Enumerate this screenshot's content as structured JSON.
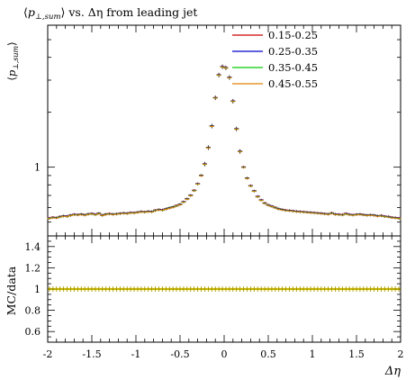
{
  "chart_data": {
    "type": "scatter",
    "title_parts": {
      "bracket_open": "⟨",
      "p": "p",
      "p_sub": "⊥,sum",
      "bracket_close": "⟩",
      "rest": " vs. Δη from leading jet"
    },
    "ylabel_main": {
      "bracket_open": "⟨",
      "p": "p",
      "p_sub": "⊥,sum",
      "bracket_close": "⟩"
    },
    "ylabel_ratio": "MC/data",
    "xlabel": "Δη",
    "xlim": [
      -2,
      2
    ],
    "main_ylim": [
      0.42,
      6.0
    ],
    "main_yscale": "log",
    "main_yticks": [
      {
        "value": 1,
        "label": "1"
      }
    ],
    "ratio_ylim": [
      0.5,
      1.5
    ],
    "ratio_yticks": [
      {
        "value": 0.6,
        "label": "0.6"
      },
      {
        "value": 0.8,
        "label": "0.8"
      },
      {
        "value": 1.0,
        "label": "1"
      },
      {
        "value": 1.2,
        "label": "1.2"
      },
      {
        "value": 1.4,
        "label": "1.4"
      }
    ],
    "xticks": [
      {
        "value": -2,
        "label": "-2"
      },
      {
        "value": -1.5,
        "label": "-1.5"
      },
      {
        "value": -1,
        "label": "-1"
      },
      {
        "value": -0.5,
        "label": "-0.5"
      },
      {
        "value": 0,
        "label": "0"
      },
      {
        "value": 0.5,
        "label": "0.5"
      },
      {
        "value": 1,
        "label": "1"
      },
      {
        "value": 1.5,
        "label": "1.5"
      },
      {
        "value": 2,
        "label": "2"
      }
    ],
    "legend_position": "top-right",
    "series": [
      {
        "name": "0.15-0.25",
        "color": "#cc0000"
      },
      {
        "name": "0.25-0.35",
        "color": "#0000cc"
      },
      {
        "name": "0.35-0.45",
        "color": "#00cc00"
      },
      {
        "name": "0.45-0.55",
        "color": "#e08000"
      }
    ],
    "data_color": "#000000",
    "ratio_band_color": "#ffee00",
    "x": [
      -1.98,
      -1.94,
      -1.9,
      -1.86,
      -1.82,
      -1.78,
      -1.74,
      -1.7,
      -1.66,
      -1.62,
      -1.58,
      -1.54,
      -1.5,
      -1.46,
      -1.42,
      -1.38,
      -1.34,
      -1.3,
      -1.26,
      -1.22,
      -1.18,
      -1.14,
      -1.1,
      -1.06,
      -1.02,
      -0.98,
      -0.94,
      -0.9,
      -0.86,
      -0.82,
      -0.78,
      -0.74,
      -0.7,
      -0.66,
      -0.62,
      -0.58,
      -0.54,
      -0.5,
      -0.46,
      -0.42,
      -0.38,
      -0.34,
      -0.3,
      -0.26,
      -0.22,
      -0.18,
      -0.14,
      -0.1,
      -0.06,
      -0.02,
      0.02,
      0.06,
      0.1,
      0.14,
      0.18,
      0.22,
      0.26,
      0.3,
      0.34,
      0.38,
      0.42,
      0.46,
      0.5,
      0.54,
      0.58,
      0.62,
      0.66,
      0.7,
      0.74,
      0.78,
      0.82,
      0.86,
      0.9,
      0.94,
      0.98,
      1.02,
      1.06,
      1.1,
      1.14,
      1.18,
      1.22,
      1.26,
      1.3,
      1.34,
      1.38,
      1.42,
      1.46,
      1.5,
      1.54,
      1.58,
      1.62,
      1.66,
      1.7,
      1.74,
      1.78,
      1.82,
      1.86,
      1.9,
      1.94,
      1.98
    ],
    "values": [
      0.525,
      0.53,
      0.528,
      0.535,
      0.54,
      0.538,
      0.545,
      0.55,
      0.548,
      0.552,
      0.547,
      0.553,
      0.556,
      0.55,
      0.558,
      0.545,
      0.552,
      0.555,
      0.552,
      0.554,
      0.557,
      0.56,
      0.558,
      0.563,
      0.562,
      0.566,
      0.57,
      0.568,
      0.572,
      0.57,
      0.58,
      0.585,
      0.582,
      0.59,
      0.598,
      0.605,
      0.615,
      0.625,
      0.645,
      0.67,
      0.7,
      0.745,
      0.81,
      0.9,
      1.04,
      1.28,
      1.68,
      2.4,
      3.2,
      3.55,
      3.5,
      3.1,
      2.3,
      1.62,
      1.22,
      1.0,
      0.87,
      0.79,
      0.74,
      0.69,
      0.66,
      0.635,
      0.62,
      0.61,
      0.6,
      0.59,
      0.585,
      0.58,
      0.578,
      0.575,
      0.572,
      0.57,
      0.568,
      0.566,
      0.564,
      0.562,
      0.56,
      0.558,
      0.555,
      0.553,
      0.56,
      0.552,
      0.55,
      0.548,
      0.556,
      0.55,
      0.547,
      0.55,
      0.552,
      0.548,
      0.545,
      0.547,
      0.545,
      0.54,
      0.542,
      0.537,
      0.535,
      0.53,
      0.528,
      0.525
    ]
  }
}
